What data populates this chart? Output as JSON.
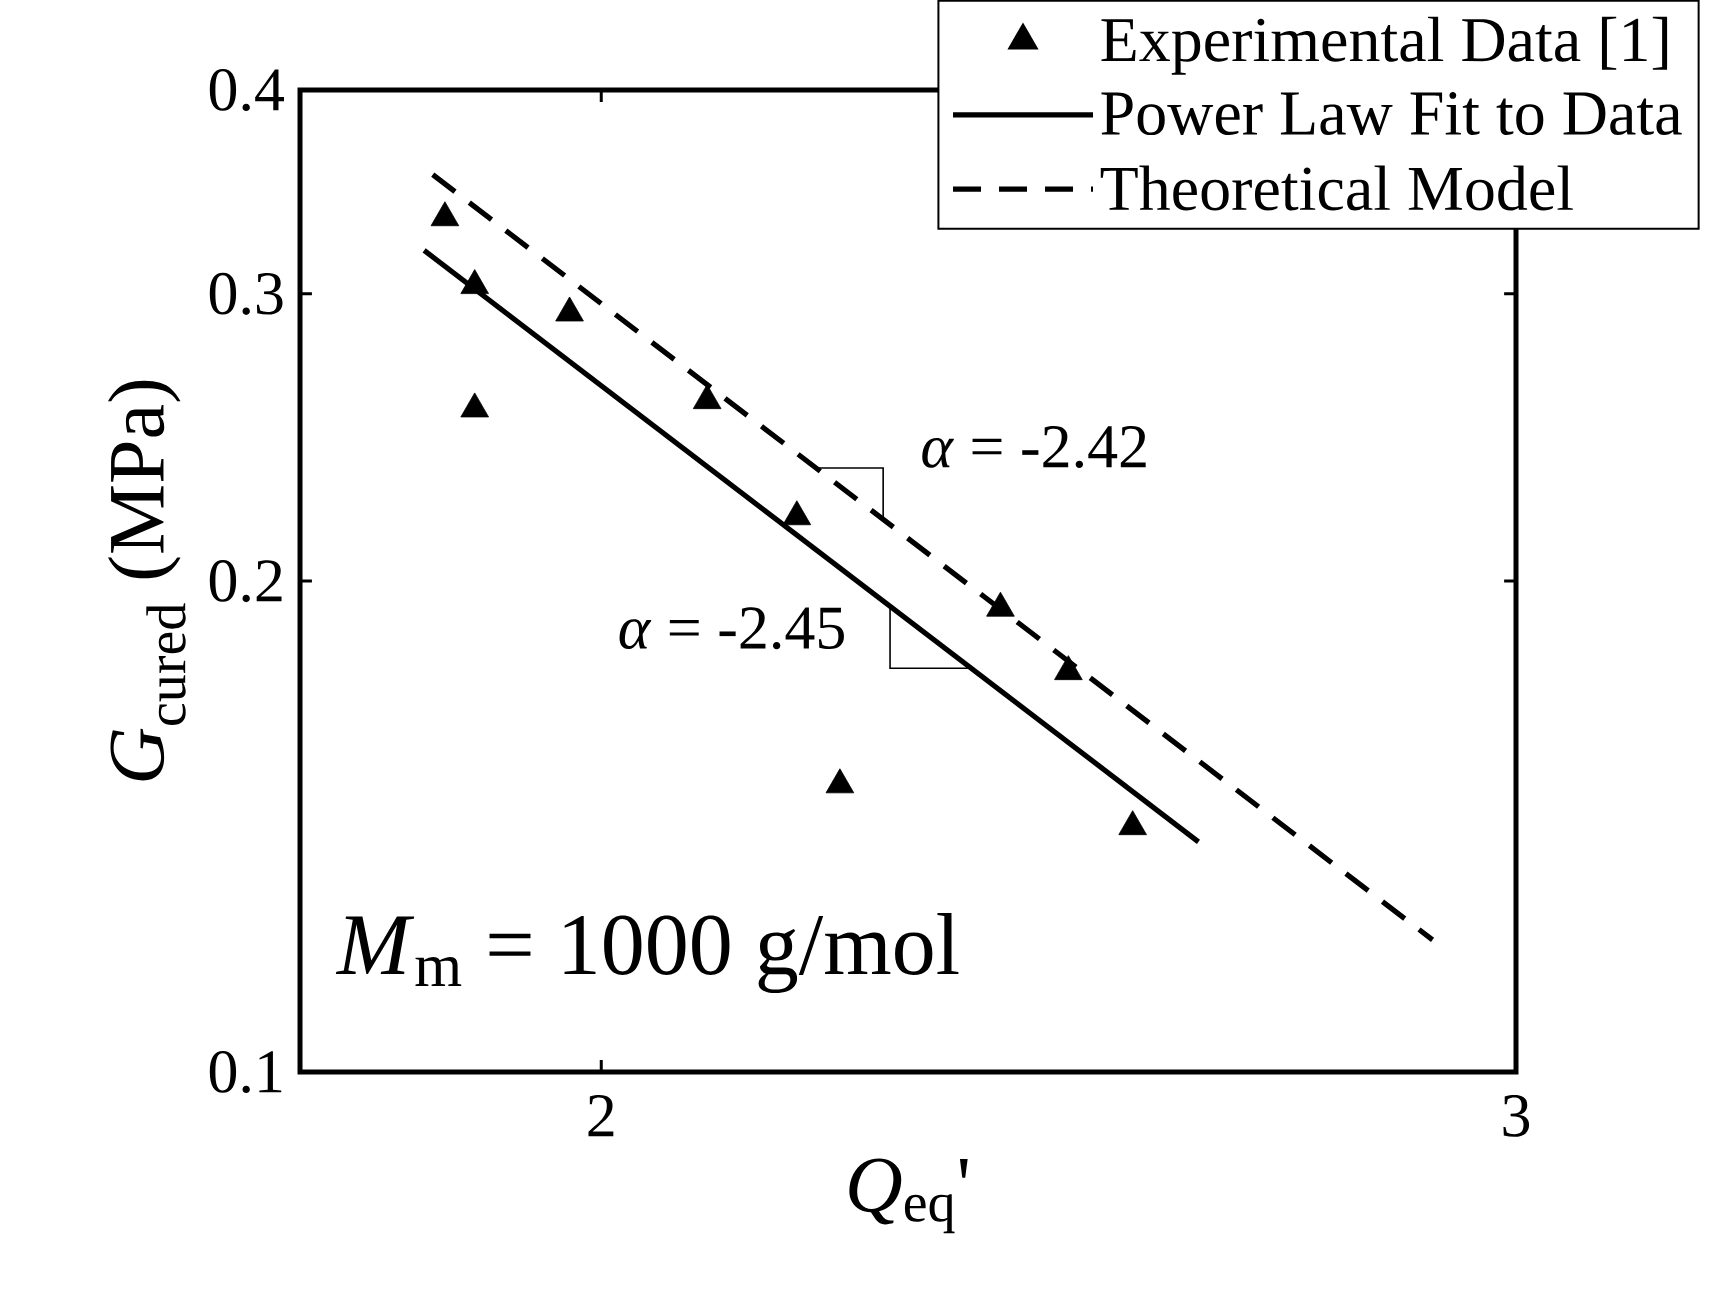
{
  "chart_data": {
    "type": "scatter",
    "xlabel": "*Q*$_{eq}$'",
    "ylabel": "*G*$_{cured}$ (MPa)",
    "log": "xy",
    "xlim": [
      1.75,
      3
    ],
    "xticks": [
      2,
      3
    ],
    "ylim": [
      0.1,
      0.4
    ],
    "yticks": [
      0.1,
      0.2,
      0.3,
      0.4
    ],
    "legend": "top right",
    "series": [
      {
        "name": "Experimental Data [1]",
        "marker": "triangle",
        "color": "#000000",
        "x": [
          1.866,
          1.891,
          1.891,
          1.972,
          2.096,
          2.181,
          2.223,
          2.387,
          2.46,
          2.531
        ],
        "values": [
          0.334,
          0.3035,
          0.255,
          0.292,
          0.258,
          0.219,
          0.15,
          0.1925,
          0.176,
          0.1414
        ]
      },
      {
        "name": "Power Law Fit to Data",
        "type": "line",
        "line_style": "solid",
        "color": "#000000",
        "x": [
          1.849,
          2.606
        ],
        "values": [
          0.319,
          0.1384
        ]
      },
      {
        "name": "Theoretical Model",
        "type": "line",
        "line_style": "dashed",
        "color": "#000000",
        "x": [
          1.856,
          2.891
        ],
        "values": [
          0.355,
          0.1205
        ]
      }
    ],
    "annotations": [
      {
        "text": "*α* = -2.42",
        "x": 2.2,
        "y": 0.2346
      },
      {
        "text": "*α* = -2.45",
        "x": 2.273,
        "y": 0.1931
      },
      "*M*$_{m}$ = 1000 g/mol"
    ]
  }
}
